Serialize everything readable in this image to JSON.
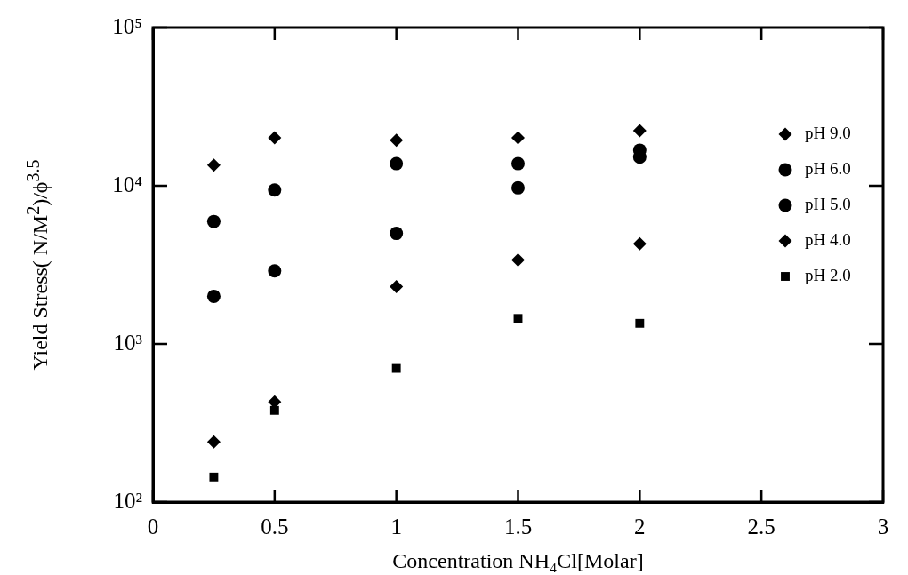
{
  "chart_data": {
    "type": "scatter",
    "xlabel": "Concentration NH₄Cl[Molar]",
    "ylabel": "Yield Stress( N/M$^{2}$)/ϕ$^{3.5}$",
    "x": [
      0.25,
      0.5,
      1,
      1.5,
      2
    ],
    "series": [
      {
        "name": "pH 9.0",
        "color": "#000000",
        "marker": "diamond",
        "values": [
          13500,
          20100,
          19400,
          20100,
          22300
        ]
      },
      {
        "name": "pH 6.0",
        "color": "#000000",
        "marker": "circle",
        "values": [
          5950,
          9400,
          13800,
          13800,
          16800
        ]
      },
      {
        "name": "pH 5.0",
        "color": "#000000",
        "marker": "circle",
        "values": [
          2000,
          2900,
          5000,
          9700,
          15200
        ]
      },
      {
        "name": "pH 4.0",
        "color": "#000000",
        "marker": "diamond",
        "values": [
          240,
          430,
          2300,
          3400,
          4300
        ]
      },
      {
        "name": "pH 2.0",
        "color": "#000000",
        "marker": "square",
        "values": [
          144,
          380,
          700,
          1450,
          1350
        ]
      }
    ],
    "xlim": [
      0,
      3
    ],
    "xticks": [
      0,
      0.5,
      1,
      1.5,
      2,
      2.5,
      3
    ],
    "ylim": [
      100,
      100000
    ],
    "yticks": [
      {
        "value": 100,
        "label": "10²"
      },
      {
        "value": 1000,
        "label": "10³"
      },
      {
        "value": 10000,
        "label": "10⁴"
      },
      {
        "value": 100000,
        "label": "10⁵"
      }
    ],
    "log": "y",
    "grid": false,
    "legend": "right"
  }
}
